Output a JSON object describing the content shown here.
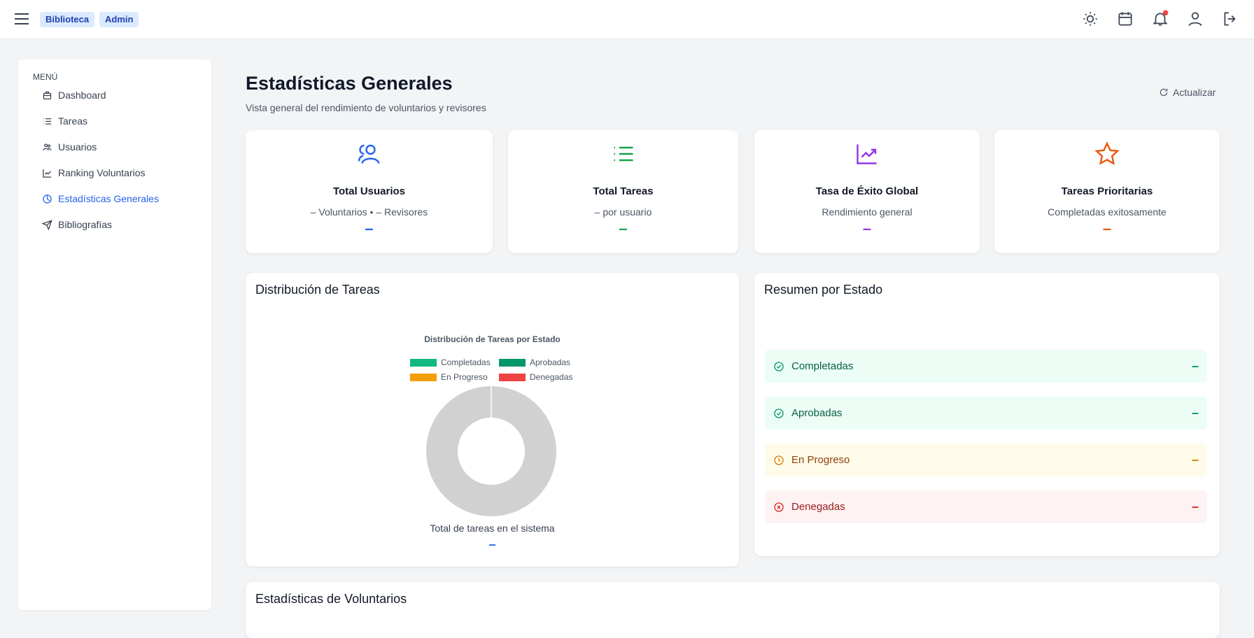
{
  "header": {
    "badges": [
      "Biblioteca",
      "Admin"
    ]
  },
  "sidebar": {
    "label": "MENÚ",
    "items": [
      "Dashboard",
      "Tareas",
      "Usuarios",
      "Ranking Voluntarios",
      "Estadísticas Generales",
      "Bibliografías"
    ]
  },
  "page": {
    "title": "Estadísticas Generales",
    "subtitle": "Vista general del rendimiento de voluntarios y revisores",
    "refresh": "Actualizar"
  },
  "cards": [
    {
      "title": "Total Usuarios",
      "subtitle": "– Voluntarios • – Revisores",
      "value": "–"
    },
    {
      "title": "Total Tareas",
      "subtitle": "– por usuario",
      "value": "–"
    },
    {
      "title": "Tasa de Éxito Global",
      "subtitle": "Rendimiento general",
      "value": "–"
    },
    {
      "title": "Tareas Prioritarias",
      "subtitle": "Completadas exitosamente",
      "value": "–"
    }
  ],
  "distribution": {
    "title": "Distribución de Tareas",
    "chart_title": "Distribución de Tareas por Estado",
    "legend": [
      {
        "name": "Completadas",
        "color": "#10b981"
      },
      {
        "name": "Aprobadas",
        "color": "#059669"
      },
      {
        "name": "En Progreso",
        "color": "#f59e0b"
      },
      {
        "name": "Denegadas",
        "color": "#ef4444"
      }
    ],
    "caption": "Total de tareas en el sistema",
    "total": "–"
  },
  "summary": {
    "title": "Resumen por Estado",
    "rows": [
      {
        "label": "Completadas",
        "value": "–"
      },
      {
        "label": "Aprobadas",
        "value": "–"
      },
      {
        "label": "En Progreso",
        "value": "–"
      },
      {
        "label": "Denegadas",
        "value": "–"
      }
    ]
  },
  "volunteers": {
    "title": "Estadísticas de Voluntarios"
  }
}
